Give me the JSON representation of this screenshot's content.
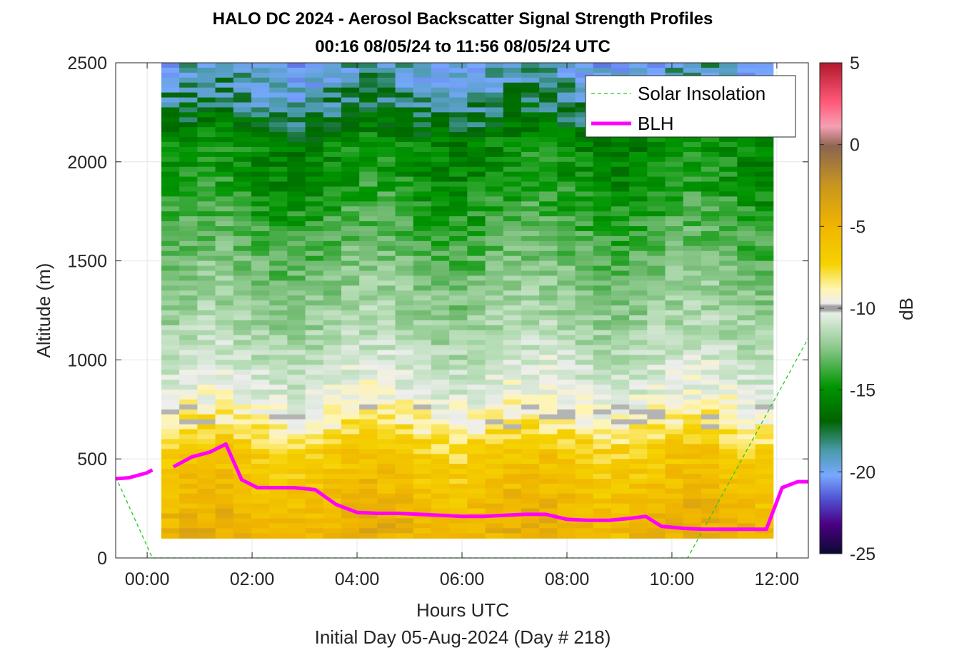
{
  "chart_data": {
    "type": "heatmap",
    "title": "HALO DC 2024 - Aerosol Backscatter Signal Strength Profiles",
    "subtitle": "00:16 08/05/24 to 11:56 08/05/24  UTC",
    "xlabel": "Hours UTC",
    "ylabel": "Altitude (m)",
    "footer": "Initial Day 05-Aug-2024 (Day # 218)",
    "xlim_hours": [
      -0.6,
      12.6
    ],
    "ylim": [
      0,
      2500
    ],
    "x_ticks": [
      {
        "value": 0,
        "label": "00:00"
      },
      {
        "value": 2,
        "label": "02:00"
      },
      {
        "value": 4,
        "label": "04:00"
      },
      {
        "value": 6,
        "label": "06:00"
      },
      {
        "value": 8,
        "label": "08:00"
      },
      {
        "value": 10,
        "label": "10:00"
      },
      {
        "value": 12,
        "label": "12:00"
      }
    ],
    "y_ticks": [
      0,
      500,
      1000,
      1500,
      2000,
      2500
    ],
    "grid": true,
    "colorbar": {
      "label": "dB",
      "min": -25,
      "max": 5,
      "ticks": [
        5,
        0,
        -5,
        -10,
        -15,
        -20,
        -25
      ]
    },
    "heatmap_extent": {
      "x_start_hours": 0.27,
      "x_end_hours": 11.93,
      "y_bottom": 100,
      "y_top": 2500
    },
    "heatmap_grid_dB": {
      "altitudes": [
        2500,
        2300,
        2100,
        1900,
        1700,
        1500,
        1300,
        1100,
        950,
        850,
        750,
        650,
        550,
        450,
        350,
        250,
        150,
        100
      ],
      "columns": 34,
      "profile_dB": [
        -20,
        -19,
        -16.5,
        -16,
        -15,
        -14,
        -13,
        -12,
        -11,
        -10.5,
        -9.5,
        -8.5,
        -7,
        -6.5,
        -6,
        -5.5,
        -5,
        -5
      ]
    },
    "series": [
      {
        "name": "Solar Insolation",
        "style": "dashed",
        "color": "#22cc22",
        "x": [
          -0.6,
          0.1,
          10.3,
          12.6
        ],
        "y": [
          410,
          0,
          0,
          1110
        ]
      },
      {
        "name": "BLH",
        "style": "solid",
        "color": "#ff00ff",
        "segments": [
          {
            "x": [
              -0.6,
              -0.35,
              0.0,
              0.1
            ],
            "y": [
              400,
              405,
              430,
              445
            ]
          },
          {
            "x": [
              0.5,
              0.85,
              1.2,
              1.5,
              1.8,
              2.1,
              2.5,
              2.8,
              3.2,
              3.6,
              4.0,
              4.4,
              4.8,
              5.2,
              5.6,
              6.0,
              6.4,
              6.8,
              7.2,
              7.6,
              8.0,
              8.4,
              8.8,
              9.2,
              9.5,
              9.8,
              10.2,
              10.6,
              11.0,
              11.4,
              11.8,
              12.1,
              12.4,
              12.6
            ],
            "y": [
              460,
              510,
              535,
              575,
              395,
              355,
              355,
              355,
              345,
              270,
              230,
              225,
              225,
              220,
              215,
              210,
              210,
              215,
              220,
              220,
              195,
              190,
              190,
              200,
              210,
              160,
              150,
              145,
              145,
              145,
              145,
              355,
              385,
              385
            ]
          }
        ]
      }
    ],
    "legend": {
      "position": "top-right",
      "entries": [
        "Solar Insolation",
        "BLH"
      ]
    },
    "colors": {
      "blh": "#ff00ff",
      "solar": "#22cc22",
      "missing": "#b4b4b4"
    }
  }
}
